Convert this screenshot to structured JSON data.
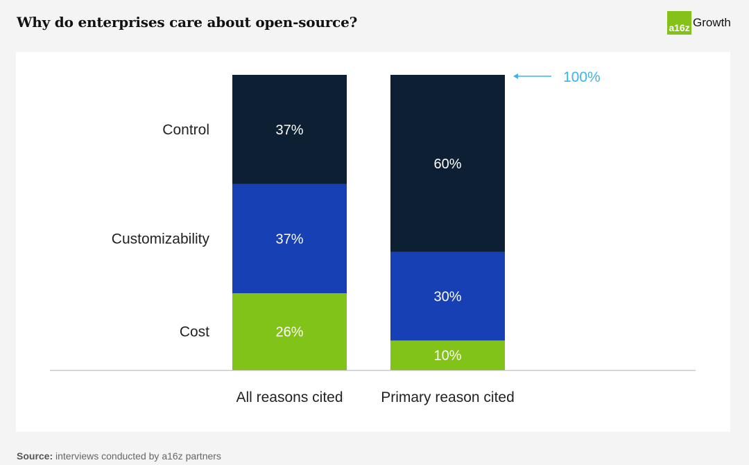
{
  "title": "Why do enterprises care about open-source?",
  "logo": {
    "mark": "a16z",
    "text": "Growth"
  },
  "source": {
    "label": "Source:",
    "text": " interviews conducted by a16z partners"
  },
  "colors": {
    "Control": "#0d1f33",
    "Customizability": "#1740b5",
    "Cost": "#82c31a",
    "annotation": "#3cb3ea"
  },
  "chart_data": {
    "type": "bar",
    "stacked": true,
    "categories": [
      "All reasons cited",
      "Primary reason cited"
    ],
    "series": [
      {
        "name": "Cost",
        "values": [
          26,
          10
        ]
      },
      {
        "name": "Customizability",
        "values": [
          37,
          30
        ]
      },
      {
        "name": "Control",
        "values": [
          37,
          60
        ]
      }
    ],
    "labels": [
      [
        "26%",
        "37%",
        "37%"
      ],
      [
        "10%",
        "30%",
        "60%"
      ]
    ],
    "segment_labels": [
      "Control",
      "Customizability",
      "Cost"
    ],
    "annotation": "100%",
    "ylim": [
      0,
      100
    ],
    "grid": false
  }
}
